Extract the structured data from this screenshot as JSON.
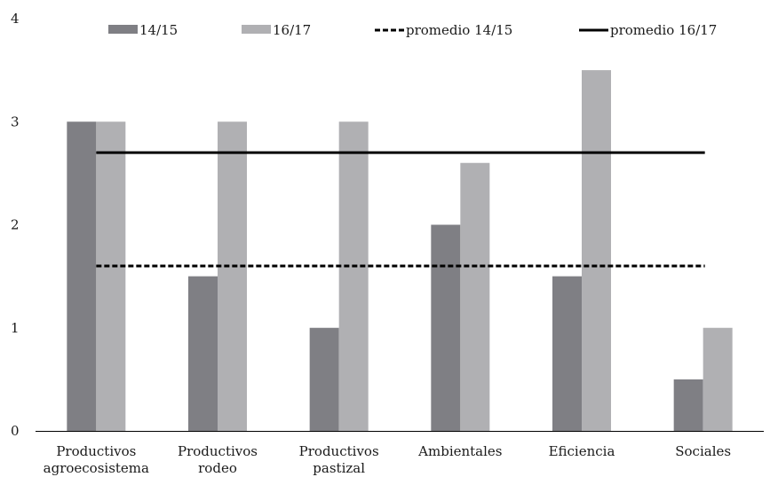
{
  "chart_data": {
    "type": "bar",
    "title": "",
    "xlabel": "",
    "ylabel": "",
    "ylim": [
      0,
      4
    ],
    "yticks": [
      "0",
      "1",
      "2",
      "3",
      "4"
    ],
    "categories": [
      [
        "Productivos",
        "agroecosistema"
      ],
      [
        "Productivos",
        "rodeo"
      ],
      [
        "Productivos",
        "pastizal"
      ],
      [
        "Ambientales"
      ],
      [
        "Eficiencia"
      ],
      [
        "Sociales"
      ]
    ],
    "series": [
      {
        "name": "14/15",
        "values": [
          3,
          1.5,
          1,
          2,
          1.5,
          0.5
        ],
        "color": "#7f7f84"
      },
      {
        "name": "16/17",
        "values": [
          3,
          3,
          3,
          2.6,
          3.5,
          1
        ],
        "color": "#b0b0b3"
      }
    ],
    "reference_lines": [
      {
        "name": "promedio 14/15",
        "value": 1.6,
        "style": "dashed",
        "color": "#000000"
      },
      {
        "name": "promedio 16/17",
        "value": 2.7,
        "style": "solid",
        "color": "#000000"
      }
    ],
    "legend": "top",
    "grid": false
  }
}
